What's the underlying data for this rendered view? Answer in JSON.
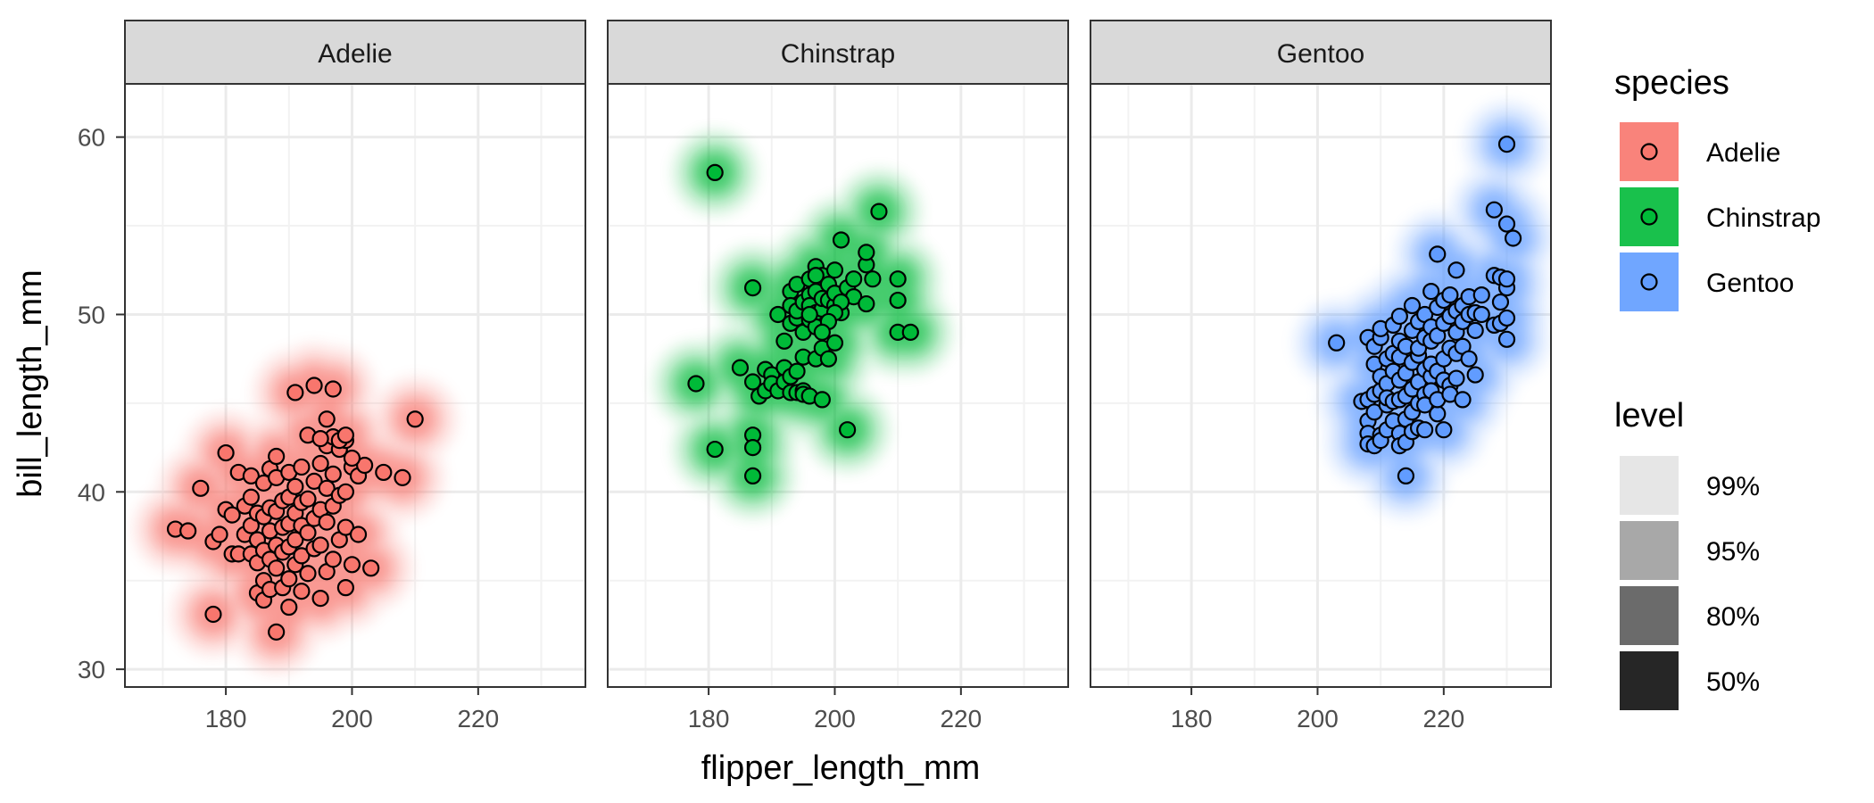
{
  "chart_data": {
    "type": "scatter",
    "xlabel": "flipper_length_mm",
    "ylabel": "bill_length_mm",
    "xlim": [
      164,
      237
    ],
    "ylim": [
      29,
      63
    ],
    "x_ticks": [
      180,
      200,
      220
    ],
    "y_ticks": [
      30,
      40,
      50,
      60
    ],
    "grid": true,
    "facets": [
      "Adelie",
      "Chinstrap",
      "Gentoo"
    ],
    "colors": {
      "Adelie": "#F8766D",
      "Chinstrap": "#00BA38",
      "Gentoo": "#619CFF"
    },
    "legend": {
      "species_title": "species",
      "species": [
        "Adelie",
        "Chinstrap",
        "Gentoo"
      ],
      "level_title": "level",
      "levels": [
        "99%",
        "95%",
        "80%",
        "50%"
      ],
      "level_shades": [
        "#e6e6e6",
        "#a8a8a8",
        "#6b6b6b",
        "#262626"
      ],
      "placement": "right"
    },
    "series": [
      {
        "name": "Adelie",
        "points": [
          [
            172,
            37.9
          ],
          [
            174,
            37.8
          ],
          [
            176,
            40.2
          ],
          [
            178,
            33.1
          ],
          [
            178,
            37.2
          ],
          [
            179,
            37.6
          ],
          [
            180,
            39.0
          ],
          [
            180,
            42.2
          ],
          [
            181,
            36.5
          ],
          [
            181,
            38.7
          ],
          [
            182,
            36.5
          ],
          [
            182,
            41.1
          ],
          [
            183,
            37.6
          ],
          [
            183,
            39.2
          ],
          [
            184,
            36.5
          ],
          [
            184,
            38.1
          ],
          [
            184,
            39.7
          ],
          [
            184,
            40.9
          ],
          [
            185,
            34.3
          ],
          [
            185,
            36.0
          ],
          [
            185,
            37.3
          ],
          [
            185,
            38.8
          ],
          [
            186,
            33.9
          ],
          [
            186,
            35.0
          ],
          [
            186,
            36.7
          ],
          [
            186,
            38.6
          ],
          [
            186,
            40.5
          ],
          [
            187,
            34.5
          ],
          [
            187,
            36.2
          ],
          [
            187,
            37.8
          ],
          [
            187,
            39.1
          ],
          [
            187,
            41.3
          ],
          [
            188,
            32.1
          ],
          [
            188,
            35.7
          ],
          [
            188,
            37.0
          ],
          [
            188,
            38.9
          ],
          [
            188,
            40.8
          ],
          [
            188,
            42.0
          ],
          [
            189,
            34.6
          ],
          [
            189,
            36.6
          ],
          [
            189,
            38.0
          ],
          [
            189,
            39.5
          ],
          [
            190,
            33.5
          ],
          [
            190,
            35.1
          ],
          [
            190,
            36.9
          ],
          [
            190,
            38.2
          ],
          [
            190,
            39.7
          ],
          [
            190,
            41.1
          ],
          [
            191,
            35.9
          ],
          [
            191,
            37.3
          ],
          [
            191,
            38.8
          ],
          [
            191,
            40.3
          ],
          [
            191,
            45.6
          ],
          [
            192,
            34.4
          ],
          [
            192,
            36.4
          ],
          [
            192,
            38.1
          ],
          [
            192,
            39.4
          ],
          [
            192,
            41.4
          ],
          [
            193,
            35.4
          ],
          [
            193,
            37.7
          ],
          [
            193,
            39.6
          ],
          [
            193,
            43.2
          ],
          [
            194,
            36.8
          ],
          [
            194,
            38.5
          ],
          [
            194,
            40.6
          ],
          [
            194,
            46.0
          ],
          [
            195,
            34.0
          ],
          [
            195,
            37.0
          ],
          [
            195,
            39.0
          ],
          [
            195,
            41.6
          ],
          [
            196,
            35.5
          ],
          [
            196,
            38.3
          ],
          [
            196,
            40.2
          ],
          [
            196,
            42.6
          ],
          [
            197,
            36.2
          ],
          [
            197,
            39.2
          ],
          [
            197,
            41.0
          ],
          [
            197,
            43.1
          ],
          [
            197,
            45.8
          ],
          [
            198,
            37.3
          ],
          [
            198,
            39.8
          ],
          [
            198,
            42.4
          ],
          [
            199,
            34.6
          ],
          [
            199,
            38.0
          ],
          [
            199,
            40.0
          ],
          [
            199,
            42.9
          ],
          [
            200,
            35.9
          ],
          [
            200,
            41.4
          ],
          [
            201,
            37.6
          ],
          [
            201,
            40.9
          ],
          [
            202,
            41.5
          ],
          [
            203,
            35.7
          ],
          [
            205,
            41.1
          ],
          [
            208,
            40.8
          ],
          [
            210,
            44.1
          ],
          [
            196,
            44.1
          ],
          [
            198,
            42.9
          ],
          [
            199,
            43.2
          ],
          [
            200,
            41.9
          ],
          [
            195,
            43.0
          ]
        ]
      },
      {
        "name": "Chinstrap",
        "points": [
          [
            178,
            46.1
          ],
          [
            181,
            58.0
          ],
          [
            181,
            42.4
          ],
          [
            185,
            47.0
          ],
          [
            187,
            51.5
          ],
          [
            187,
            43.2
          ],
          [
            187,
            42.5
          ],
          [
            187,
            40.9
          ],
          [
            187,
            46.2
          ],
          [
            188,
            45.4
          ],
          [
            189,
            46.9
          ],
          [
            189,
            45.7
          ],
          [
            190,
            46.6
          ],
          [
            190,
            46.1
          ],
          [
            191,
            45.7
          ],
          [
            191,
            50.0
          ],
          [
            192,
            46.2
          ],
          [
            192,
            48.5
          ],
          [
            192,
            47.0
          ],
          [
            193,
            49.5
          ],
          [
            193,
            51.3
          ],
          [
            193,
            46.5
          ],
          [
            193,
            50.5
          ],
          [
            193,
            45.6
          ],
          [
            194,
            49.8
          ],
          [
            194,
            51.7
          ],
          [
            194,
            45.6
          ],
          [
            194,
            50.2
          ],
          [
            194,
            46.8
          ],
          [
            195,
            45.7
          ],
          [
            195,
            49.0
          ],
          [
            195,
            50.7
          ],
          [
            195,
            45.5
          ],
          [
            195,
            47.6
          ],
          [
            196,
            49.7
          ],
          [
            196,
            51.1
          ],
          [
            196,
            45.4
          ],
          [
            196,
            50.5
          ],
          [
            196,
            52.0
          ],
          [
            197,
            52.7
          ],
          [
            197,
            50.1
          ],
          [
            197,
            51.3
          ],
          [
            197,
            47.5
          ],
          [
            197,
            49.3
          ],
          [
            198,
            50.3
          ],
          [
            198,
            52.2
          ],
          [
            198,
            50.9
          ],
          [
            198,
            45.2
          ],
          [
            198,
            48.1
          ],
          [
            199,
            51.7
          ],
          [
            199,
            50.8
          ],
          [
            199,
            47.5
          ],
          [
            200,
            50.5
          ],
          [
            200,
            51.2
          ],
          [
            200,
            48.4
          ],
          [
            201,
            54.2
          ],
          [
            201,
            50.1
          ],
          [
            202,
            43.5
          ],
          [
            202,
            51.5
          ],
          [
            203,
            51.0
          ],
          [
            203,
            52.0
          ],
          [
            205,
            52.8
          ],
          [
            205,
            53.5
          ],
          [
            206,
            52.0
          ],
          [
            207,
            55.8
          ],
          [
            210,
            52.0
          ],
          [
            210,
            50.8
          ],
          [
            210,
            49.0
          ],
          [
            212,
            49.0
          ],
          [
            205,
            50.6
          ],
          [
            200,
            52.5
          ],
          [
            201,
            50.7
          ],
          [
            196,
            50.0
          ],
          [
            197,
            52.2
          ],
          [
            200,
            50.1
          ],
          [
            199,
            49.6
          ],
          [
            198,
            49.0
          ]
        ]
      },
      {
        "name": "Gentoo",
        "points": [
          [
            203,
            48.4
          ],
          [
            207,
            45.1
          ],
          [
            208,
            44.0
          ],
          [
            208,
            43.3
          ],
          [
            208,
            42.7
          ],
          [
            208,
            45.2
          ],
          [
            208,
            48.7
          ],
          [
            209,
            42.6
          ],
          [
            209,
            45.5
          ],
          [
            209,
            47.2
          ],
          [
            209,
            48.2
          ],
          [
            209,
            44.5
          ],
          [
            210,
            45.7
          ],
          [
            210,
            43.2
          ],
          [
            210,
            46.5
          ],
          [
            210,
            48.7
          ],
          [
            210,
            49.2
          ],
          [
            210,
            42.9
          ],
          [
            211,
            44.9
          ],
          [
            211,
            46.1
          ],
          [
            211,
            47.5
          ],
          [
            211,
            45.3
          ],
          [
            211,
            43.5
          ],
          [
            212,
            45.1
          ],
          [
            212,
            46.8
          ],
          [
            212,
            44.0
          ],
          [
            212,
            47.8
          ],
          [
            212,
            49.4
          ],
          [
            213,
            45.2
          ],
          [
            213,
            43.3
          ],
          [
            213,
            46.3
          ],
          [
            213,
            47.6
          ],
          [
            213,
            48.5
          ],
          [
            213,
            49.9
          ],
          [
            213,
            42.6
          ],
          [
            214,
            44.1
          ],
          [
            214,
            45.4
          ],
          [
            214,
            46.7
          ],
          [
            214,
            48.2
          ],
          [
            214,
            42.8
          ],
          [
            214,
            40.9
          ],
          [
            215,
            45.8
          ],
          [
            215,
            47.3
          ],
          [
            215,
            49.1
          ],
          [
            215,
            43.4
          ],
          [
            215,
            44.5
          ],
          [
            215,
            50.5
          ],
          [
            216,
            46.2
          ],
          [
            216,
            47.7
          ],
          [
            216,
            45.0
          ],
          [
            216,
            43.6
          ],
          [
            216,
            49.6
          ],
          [
            216,
            48.1
          ],
          [
            217,
            45.5
          ],
          [
            217,
            46.9
          ],
          [
            217,
            48.7
          ],
          [
            217,
            44.9
          ],
          [
            217,
            50.0
          ],
          [
            217,
            43.5
          ],
          [
            218,
            46.5
          ],
          [
            218,
            48.5
          ],
          [
            218,
            45.7
          ],
          [
            218,
            47.2
          ],
          [
            218,
            49.3
          ],
          [
            218,
            51.3
          ],
          [
            219,
            46.8
          ],
          [
            219,
            44.4
          ],
          [
            219,
            48.8
          ],
          [
            219,
            50.4
          ],
          [
            219,
            53.4
          ],
          [
            219,
            45.2
          ],
          [
            220,
            46.3
          ],
          [
            220,
            47.5
          ],
          [
            220,
            49.5
          ],
          [
            220,
            50.8
          ],
          [
            220,
            43.5
          ],
          [
            221,
            46.0
          ],
          [
            221,
            48.1
          ],
          [
            221,
            49.9
          ],
          [
            221,
            45.5
          ],
          [
            221,
            51.1
          ],
          [
            222,
            46.4
          ],
          [
            222,
            49.0
          ],
          [
            222,
            50.2
          ],
          [
            222,
            52.5
          ],
          [
            222,
            47.8
          ],
          [
            223,
            45.2
          ],
          [
            223,
            48.2
          ],
          [
            223,
            49.6
          ],
          [
            223,
            50.5
          ],
          [
            224,
            47.5
          ],
          [
            224,
            50.0
          ],
          [
            224,
            51.0
          ],
          [
            225,
            49.1
          ],
          [
            225,
            50.1
          ],
          [
            225,
            46.6
          ],
          [
            226,
            50.0
          ],
          [
            226,
            51.1
          ],
          [
            228,
            49.4
          ],
          [
            228,
            52.2
          ],
          [
            228,
            55.9
          ],
          [
            229,
            49.5
          ],
          [
            229,
            50.7
          ],
          [
            229,
            52.1
          ],
          [
            230,
            49.8
          ],
          [
            230,
            51.5
          ],
          [
            230,
            55.1
          ],
          [
            230,
            48.6
          ],
          [
            230,
            59.6
          ],
          [
            231,
            54.3
          ],
          [
            230,
            52.0
          ]
        ]
      }
    ]
  }
}
